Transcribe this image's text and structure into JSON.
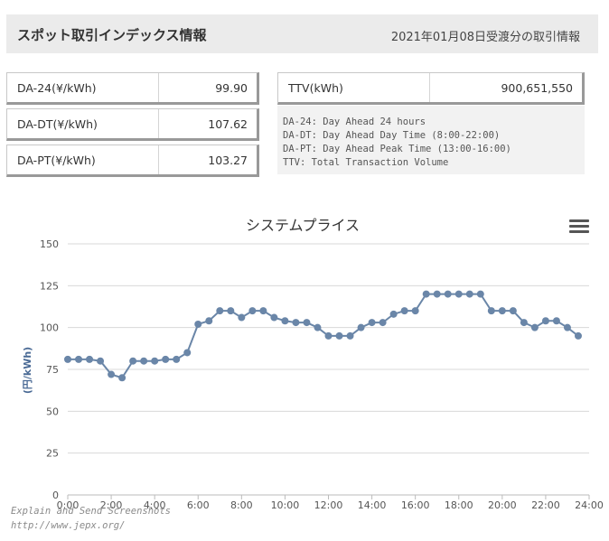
{
  "header": {
    "title": "スポット取引インデックス情報",
    "date_text": "2021年01月08日受渡分の取引情報"
  },
  "indices": [
    {
      "label": "DA-24(¥/kWh)",
      "value": "99.90"
    },
    {
      "label": "DA-DT(¥/kWh)",
      "value": "107.62"
    },
    {
      "label": "DA-PT(¥/kWh)",
      "value": "103.27"
    }
  ],
  "ttv": {
    "label": "TTV(kWh)",
    "value": "900,651,550"
  },
  "legend": [
    "DA-24: Day Ahead 24 hours",
    "DA-DT: Day Ahead Day Time (8:00-22:00)",
    "DA-PT: Day Ahead Peak Time (13:00-16:00)",
    "TTV: Total Transaction Volume"
  ],
  "watermark": {
    "line1": "Explain and Send Screenshots",
    "line2": "http://www.jepx.org/"
  },
  "menu_icon": "hamburger-menu-icon",
  "colors": {
    "line": "#6a86a8",
    "marker": "#6a86a8",
    "grid": "#d8d8d8",
    "axis_title": "#4a6a95"
  },
  "chart_data": {
    "type": "line",
    "title": "システムプライス",
    "ylabel": "(円/kWh)",
    "xlabel": "",
    "ylim": [
      0,
      150
    ],
    "yticks": [
      0,
      25,
      50,
      75,
      100,
      125,
      150
    ],
    "xlim": [
      "0:00",
      "24:00"
    ],
    "xticks": [
      "0:00",
      "2:00",
      "4:00",
      "6:00",
      "8:00",
      "10:00",
      "12:00",
      "14:00",
      "16:00",
      "18:00",
      "20:00",
      "22:00",
      "24:00"
    ],
    "grid": true,
    "x": [
      "0:00",
      "0:30",
      "1:00",
      "1:30",
      "2:00",
      "2:30",
      "3:00",
      "3:30",
      "4:00",
      "4:30",
      "5:00",
      "5:30",
      "6:00",
      "6:30",
      "7:00",
      "7:30",
      "8:00",
      "8:30",
      "9:00",
      "9:30",
      "10:00",
      "10:30",
      "11:00",
      "11:30",
      "12:00",
      "12:30",
      "13:00",
      "13:30",
      "14:00",
      "14:30",
      "15:00",
      "15:30",
      "16:00",
      "16:30",
      "17:00",
      "17:30",
      "18:00",
      "18:30",
      "19:00",
      "19:30",
      "20:00",
      "20:30",
      "21:00",
      "21:30",
      "22:00",
      "22:30",
      "23:00",
      "23:30"
    ],
    "series": [
      {
        "values": [
          81,
          81,
          81,
          80,
          72,
          70,
          80,
          80,
          80,
          81,
          81,
          85,
          102,
          104,
          110,
          110,
          106,
          110,
          110,
          106,
          104,
          103,
          103,
          100,
          95,
          95,
          95,
          100,
          103,
          103,
          108,
          110,
          110,
          120,
          120,
          120,
          120,
          120,
          120,
          110,
          110,
          110,
          103,
          100,
          104,
          104,
          100,
          95
        ]
      }
    ]
  }
}
